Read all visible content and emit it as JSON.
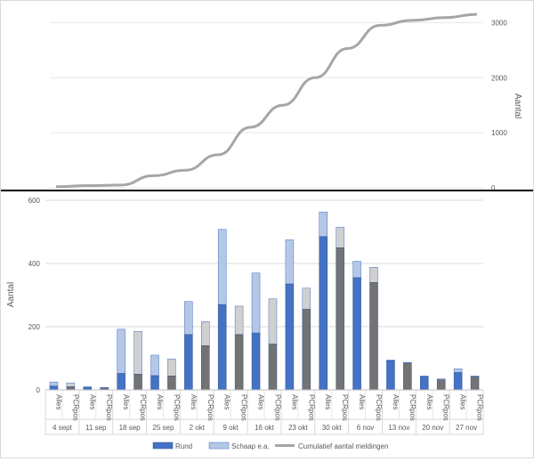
{
  "chart_data": [
    {
      "type": "line",
      "title": "",
      "y2label": "Aantal",
      "ylim": [
        0,
        3200
      ],
      "yticks": [
        "0",
        "1000",
        "2000",
        "3000"
      ],
      "grid": true,
      "series": [
        {
          "name": "Cumulatief aantal meldingen",
          "color": "#a6a6a6",
          "values": [
            20,
            40,
            50,
            220,
            320,
            600,
            1100,
            1500,
            2000,
            2530,
            2950,
            3040,
            3090,
            3150
          ]
        }
      ]
    },
    {
      "type": "bar",
      "stacked": true,
      "title": "",
      "ylabel": "Aantal",
      "ylim": [
        0,
        600
      ],
      "yticks": [
        "0",
        "200",
        "400",
        "600"
      ],
      "grid": true,
      "legend_position": "bottom",
      "weeks": [
        "4 sept",
        "11 sep",
        "18 sep",
        "25 sep",
        "2 okt",
        "9 okt",
        "16 okt",
        "23 okt",
        "30 okt",
        "6 nov",
        "13 nov",
        "20 nov",
        "27 nov"
      ],
      "categories": [
        "Alles",
        "PCRpos"
      ],
      "series": [
        {
          "name": "Rund",
          "color": "#4472c4",
          "pcr_color": "#737373",
          "alles": [
            12,
            8,
            52,
            45,
            175,
            270,
            180,
            335,
            485,
            355,
            92,
            42,
            55
          ],
          "pcrpos": [
            10,
            6,
            50,
            44,
            140,
            175,
            145,
            255,
            450,
            340,
            85,
            32,
            42
          ]
        },
        {
          "name": "Schaap e.a.",
          "color": "#b4c7e7",
          "pcr_color": "#d0d0d0",
          "alles": [
            13,
            2,
            140,
            65,
            105,
            238,
            190,
            140,
            78,
            52,
            3,
            2,
            12
          ],
          "pcrpos": [
            12,
            2,
            135,
            54,
            76,
            90,
            143,
            67,
            65,
            48,
            2,
            3,
            2
          ]
        }
      ]
    }
  ],
  "legend": {
    "rund": "Rund",
    "schaap": "Schaap e.a.",
    "cumulatief": "Cumulatief aantal meldingen"
  }
}
